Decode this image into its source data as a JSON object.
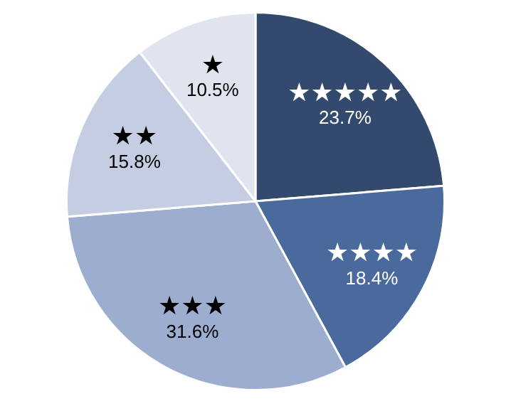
{
  "chart_data": {
    "type": "pie",
    "categories": [
      "★★★★★",
      "★★★★",
      "★★★",
      "★★",
      "★"
    ],
    "values": [
      23.7,
      18.4,
      31.6,
      15.8,
      10.5
    ],
    "value_labels": [
      "23.7%",
      "18.4%",
      "31.6%",
      "15.8%",
      "10.5%"
    ],
    "colors": [
      "#34496e",
      "#4a6a9e",
      "#9dadd0",
      "#c4cde2",
      "#dfe4ef"
    ]
  }
}
